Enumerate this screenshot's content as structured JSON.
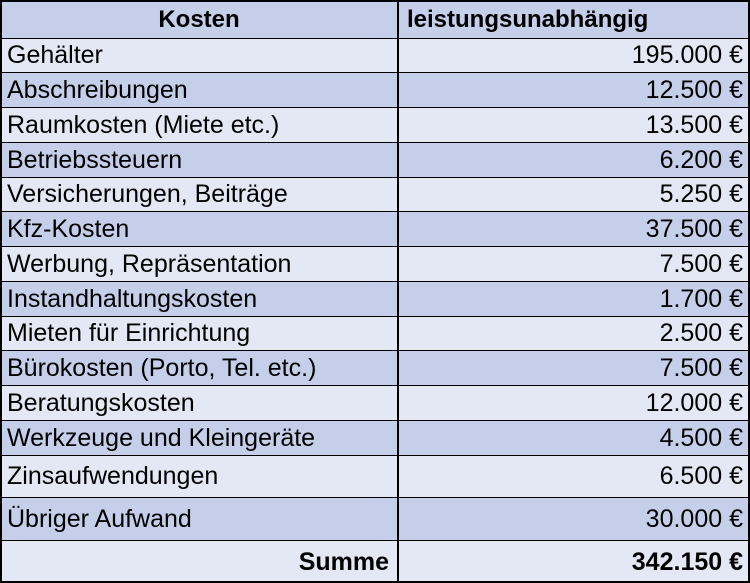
{
  "colors": {
    "blue": "#c5cfe9",
    "light": "#e4e8f4",
    "grid": "#000000"
  },
  "header": {
    "label": "Kosten",
    "value": "leistungsunabhängig"
  },
  "rows": [
    {
      "label": "Gehälter",
      "value": "195.000 €"
    },
    {
      "label": "Abschreibungen",
      "value": "12.500 €"
    },
    {
      "label": "Raumkosten (Miete etc.)",
      "value": "13.500 €"
    },
    {
      "label": "Betriebssteuern",
      "value": "6.200 €"
    },
    {
      "label": "Versicherungen, Beiträge",
      "value": "5.250 €"
    },
    {
      "label": "Kfz-Kosten",
      "value": "37.500 €"
    },
    {
      "label": "Werbung, Repräsentation",
      "value": "7.500 €"
    },
    {
      "label": "Instandhaltungskosten",
      "value": "1.700 €"
    },
    {
      "label": "Mieten für Einrichtung",
      "value": "2.500 €"
    },
    {
      "label": "Bürokosten (Porto, Tel. etc.)",
      "value": "7.500 €"
    },
    {
      "label": "Beratungskosten",
      "value": "12.000 €"
    },
    {
      "label": "Werkzeuge und Kleingeräte",
      "value": "4.500 €"
    },
    {
      "label": "Zinsaufwendungen",
      "value": "6.500 €"
    },
    {
      "label": "Übriger Aufwand",
      "value": "30.000 €"
    }
  ],
  "sum": {
    "label": "Summe",
    "value": "342.150 €"
  }
}
